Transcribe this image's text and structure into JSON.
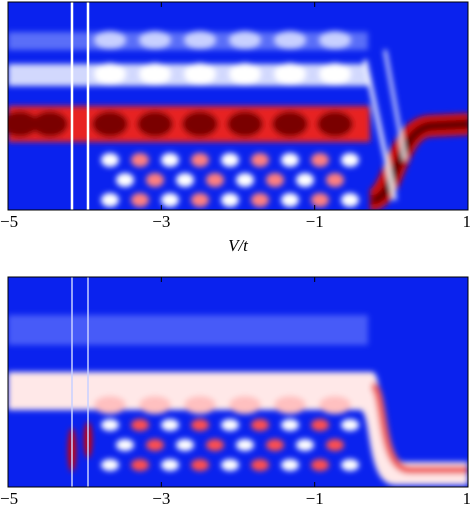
{
  "chart_data": [
    {
      "type": "heatmap",
      "xlim": [
        -5,
        1
      ],
      "xticks": [
        {
          "value": -5,
          "label": "−5"
        },
        {
          "value": -3,
          "label": "−3"
        },
        {
          "value": -1,
          "label": "−1"
        },
        1
      ],
      "xlabel": "V/t"
    },
    {
      "type": "heatmap",
      "xlim": [
        -5,
        1
      ],
      "xticks": [
        {
          "value": -5,
          "label": "−5"
        },
        {
          "value": -3,
          "label": "−3"
        },
        {
          "value": -1,
          "label": "−1"
        },
        1
      ]
    }
  ]
}
